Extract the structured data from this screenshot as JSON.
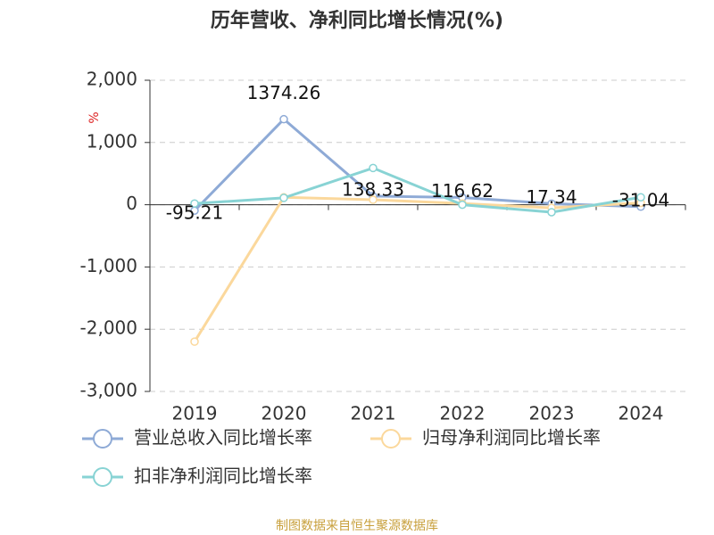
{
  "chart_data": {
    "type": "line",
    "title": "历年营收、净利同比增长情况(%)",
    "y_label": "%",
    "categories": [
      "2019",
      "2020",
      "2021",
      "2022",
      "2023",
      "2024"
    ],
    "series": [
      {
        "name": "营业总收入同比增长率",
        "color": "#8eaad6",
        "values": [
          -95.21,
          1374.26,
          138.33,
          116.62,
          17.34,
          -31.04
        ],
        "show_labels": true
      },
      {
        "name": "归母净利润同比增长率",
        "color": "#fbd89c",
        "values": [
          -2200,
          120,
          80,
          20,
          -50,
          30
        ]
      },
      {
        "name": "扣非净利润同比增长率",
        "color": "#88d3d4",
        "values": [
          20,
          110,
          590,
          0,
          -120,
          120
        ]
      }
    ],
    "ylim": [
      -3000,
      2000
    ],
    "yticks": [
      {
        "value": -3000,
        "label": "-3,000"
      },
      {
        "value": -2000,
        "label": "-2,000"
      },
      {
        "value": -1000,
        "label": "-1,000"
      },
      0,
      {
        "value": 1000,
        "label": "1,000"
      },
      {
        "value": 2000,
        "label": "2,000"
      }
    ],
    "grid": true,
    "source": "制图数据来自恒生聚源数据库"
  }
}
